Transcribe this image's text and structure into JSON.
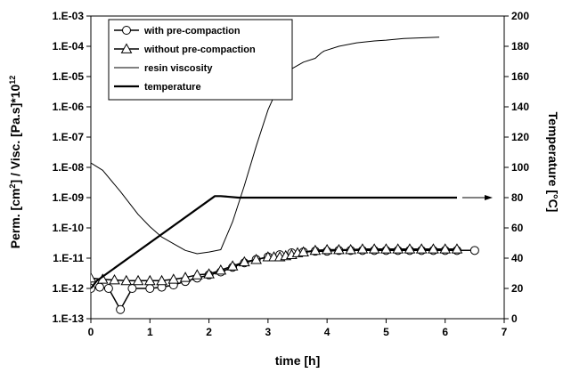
{
  "chart_data": {
    "type": "line",
    "xlabel": "time [h]",
    "ylabel_left": "Perm. [cm²] / Visc. [Pa.s]*10¹²",
    "ylabel_left_parts": {
      "a": "Perm. [cm",
      "sup1": "2",
      "b": "] / Visc. [Pa.s]*10",
      "sup2": "12"
    },
    "ylabel_right": "Temperature [°C]",
    "xlim": [
      0,
      7
    ],
    "ylim_left_log10": [
      -13,
      -3
    ],
    "ylim_right": [
      0,
      200
    ],
    "scale_left": "log",
    "x_ticks": [
      "0",
      "1",
      "2",
      "3",
      "4",
      "5",
      "6",
      "7"
    ],
    "y_left_ticks": [
      "1.E-13",
      "1.E-12",
      "1.E-11",
      "1.E-10",
      "1.E-09",
      "1.E-08",
      "1.E-07",
      "1.E-06",
      "1.E-05",
      "1.E-04",
      "1.E-03"
    ],
    "y_right_ticks": [
      "0",
      "20",
      "40",
      "60",
      "80",
      "100",
      "120",
      "140",
      "160",
      "180",
      "200"
    ],
    "grid": false,
    "legend_position": "top-left",
    "series": [
      {
        "name": "with pre-compaction",
        "axis": "left",
        "marker": "circle",
        "x": [
          0,
          0.15,
          0.3,
          0.5,
          0.7,
          1.0,
          1.2,
          1.4,
          1.6,
          1.8,
          2.0,
          2.2,
          2.4,
          2.6,
          2.8,
          3.0,
          3.2,
          3.4,
          3.6,
          3.8,
          4.0,
          4.2,
          4.4,
          4.6,
          4.8,
          5.0,
          5.2,
          5.4,
          5.6,
          5.8,
          6.0,
          6.2,
          6.5
        ],
        "y": [
          1e-12,
          1.1e-12,
          1e-12,
          2e-13,
          1e-12,
          1e-12,
          1.1e-12,
          1.3e-12,
          1.7e-12,
          2.2e-12,
          2.8e-12,
          3.5e-12,
          5e-12,
          7e-12,
          9e-12,
          1.1e-11,
          1.3e-11,
          1.5e-11,
          1.6e-11,
          1.7e-11,
          1.7e-11,
          1.8e-11,
          1.8e-11,
          1.8e-11,
          1.8e-11,
          1.8e-11,
          1.8e-11,
          1.8e-11,
          1.8e-11,
          1.8e-11,
          1.8e-11,
          1.8e-11,
          1.8e-11
        ]
      },
      {
        "name": "without pre-compaction",
        "axis": "left",
        "marker": "triangle",
        "x": [
          0,
          0.2,
          0.4,
          0.6,
          0.8,
          1.0,
          1.2,
          1.4,
          1.6,
          1.8,
          2.0,
          2.2,
          2.4,
          2.6,
          2.8,
          3.0,
          3.1,
          3.2,
          3.3,
          3.4,
          3.5,
          3.6,
          3.8,
          4.0,
          4.2,
          4.4,
          4.6,
          4.8,
          5.0,
          5.2,
          5.4,
          5.6,
          5.8,
          6.0,
          6.2
        ],
        "y": [
          2.2e-12,
          2e-12,
          1.9e-12,
          1.8e-12,
          1.8e-12,
          1.8e-12,
          1.8e-12,
          2e-12,
          2.3e-12,
          2.8e-12,
          3e-12,
          4e-12,
          5.5e-12,
          7.5e-12,
          9e-12,
          1.1e-11,
          1.1e-11,
          1.1e-11,
          1.2e-11,
          1.3e-11,
          1.5e-11,
          1.6e-11,
          1.8e-11,
          1.9e-11,
          1.9e-11,
          1.9e-11,
          2e-11,
          2e-11,
          2e-11,
          2e-11,
          2e-11,
          2e-11,
          2e-11,
          2e-11,
          2e-11
        ]
      },
      {
        "name": "resin viscosity",
        "axis": "left",
        "marker": "none",
        "x": [
          0,
          0.2,
          0.5,
          0.8,
          1.0,
          1.2,
          1.4,
          1.6,
          1.8,
          2.0,
          2.2,
          2.4,
          2.6,
          2.8,
          3.0,
          3.2,
          3.4,
          3.6,
          3.8,
          3.9,
          3.95,
          4.2,
          4.5,
          4.8,
          5.0,
          5.3,
          5.6,
          5.9
        ],
        "y": [
          1.4e-08,
          8e-09,
          1.6e-09,
          2.8e-10,
          1.1e-10,
          5e-11,
          3e-11,
          1.8e-11,
          1.4e-11,
          1.6e-11,
          1.9e-11,
          1.6e-10,
          2.5e-09,
          5e-08,
          8e-07,
          6e-06,
          1.8e-05,
          3e-05,
          4e-05,
          6e-05,
          7e-05,
          0.0001,
          0.00013,
          0.00015,
          0.00016,
          0.00018,
          0.00019,
          0.0002
        ]
      },
      {
        "name": "temperature",
        "axis": "right",
        "marker": "none",
        "x": [
          0,
          0.1,
          2.1,
          2.2,
          2.5,
          3.0,
          3.5,
          4.0,
          4.5,
          5.0,
          5.5,
          6.0,
          6.2
        ],
        "y": [
          20,
          25,
          81,
          81,
          80,
          80,
          80,
          80,
          80,
          80,
          80,
          80,
          80
        ]
      }
    ]
  }
}
